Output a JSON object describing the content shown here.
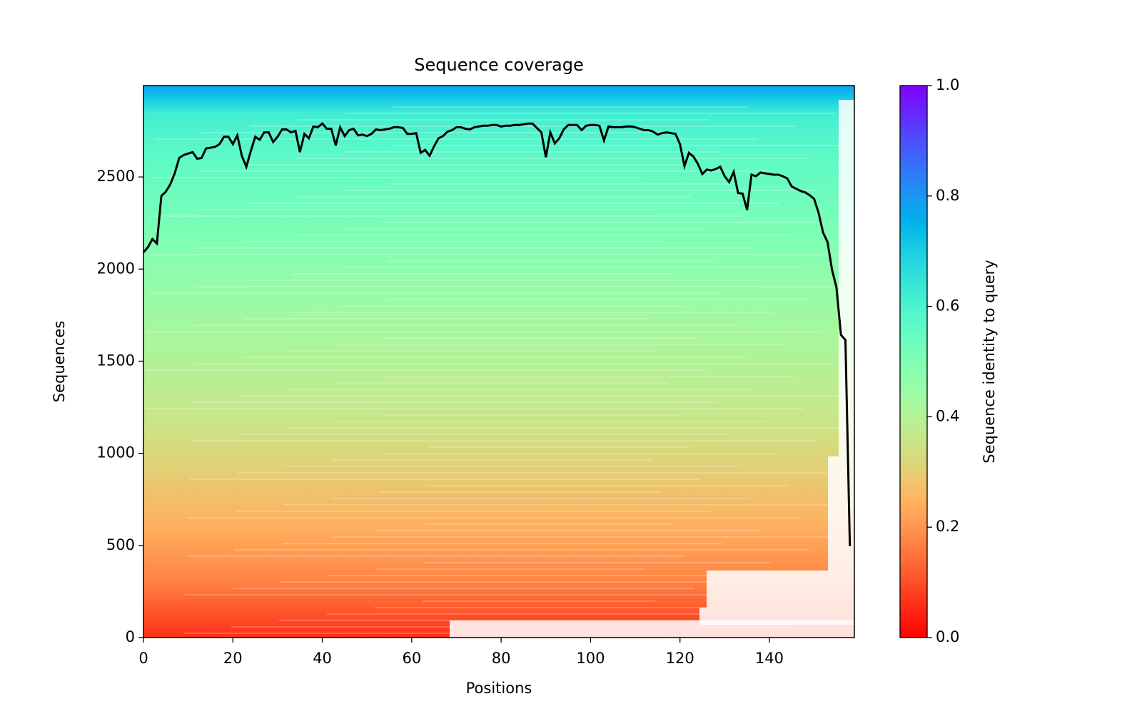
{
  "chart_data": {
    "type": "line",
    "title": "Sequence coverage",
    "xlabel": "Positions",
    "ylabel": "Sequences",
    "xlim": [
      0,
      159
    ],
    "ylim": [
      0,
      2996
    ],
    "xticks": [
      0,
      20,
      40,
      60,
      80,
      100,
      120,
      140
    ],
    "yticks": [
      0,
      500,
      1000,
      1500,
      2000,
      2500
    ],
    "color": "#000000",
    "x": [
      0,
      1,
      2,
      3,
      4,
      5,
      6,
      7,
      8,
      9,
      10,
      11,
      12,
      13,
      14,
      15,
      16,
      17,
      18,
      19,
      20,
      21,
      22,
      23,
      24,
      25,
      26,
      27,
      28,
      29,
      30,
      31,
      32,
      33,
      34,
      35,
      36,
      37,
      38,
      39,
      40,
      41,
      42,
      43,
      44,
      45,
      46,
      47,
      48,
      49,
      50,
      51,
      52,
      53,
      54,
      55,
      56,
      57,
      58,
      59,
      60,
      61,
      62,
      63,
      64,
      65,
      66,
      67,
      68,
      69,
      70,
      71,
      72,
      73,
      74,
      75,
      76,
      77,
      78,
      79,
      80,
      81,
      82,
      83,
      84,
      85,
      86,
      87,
      88,
      89,
      90,
      91,
      92,
      93,
      94,
      95,
      96,
      97,
      98,
      99,
      100,
      101,
      102,
      103,
      104,
      105,
      106,
      107,
      108,
      109,
      110,
      111,
      112,
      113,
      114,
      115,
      116,
      117,
      118,
      119,
      120,
      121,
      122,
      123,
      124,
      125,
      126,
      127,
      128,
      129,
      130,
      131,
      132,
      133,
      134,
      135,
      136,
      137,
      138,
      139,
      140,
      141,
      142,
      143,
      144,
      145,
      146,
      147,
      148,
      149,
      150,
      151,
      152,
      153,
      154,
      155,
      156,
      157,
      158
    ],
    "values": [
      2091,
      2119,
      2163,
      2139,
      2397,
      2420,
      2460,
      2520,
      2603,
      2619,
      2627,
      2635,
      2599,
      2603,
      2655,
      2659,
      2663,
      2678,
      2718,
      2718,
      2678,
      2726,
      2615,
      2555,
      2639,
      2718,
      2702,
      2742,
      2742,
      2690,
      2718,
      2758,
      2758,
      2742,
      2750,
      2635,
      2734,
      2710,
      2774,
      2770,
      2790,
      2762,
      2762,
      2671,
      2770,
      2722,
      2754,
      2762,
      2726,
      2730,
      2722,
      2734,
      2758,
      2754,
      2758,
      2762,
      2770,
      2770,
      2766,
      2734,
      2734,
      2738,
      2631,
      2647,
      2615,
      2667,
      2710,
      2722,
      2746,
      2754,
      2770,
      2770,
      2762,
      2758,
      2770,
      2774,
      2778,
      2778,
      2782,
      2782,
      2774,
      2778,
      2778,
      2782,
      2782,
      2786,
      2790,
      2790,
      2766,
      2742,
      2607,
      2742,
      2682,
      2710,
      2758,
      2782,
      2782,
      2782,
      2754,
      2778,
      2782,
      2782,
      2778,
      2698,
      2774,
      2770,
      2770,
      2770,
      2774,
      2774,
      2770,
      2762,
      2754,
      2754,
      2746,
      2730,
      2738,
      2742,
      2738,
      2734,
      2678,
      2559,
      2631,
      2611,
      2571,
      2516,
      2540,
      2535,
      2543,
      2555,
      2504,
      2472,
      2528,
      2413,
      2409,
      2321,
      2512,
      2504,
      2524,
      2520,
      2516,
      2512,
      2512,
      2504,
      2492,
      2448,
      2436,
      2424,
      2416,
      2401,
      2381,
      2305,
      2198,
      2147,
      1996,
      1901,
      1643,
      1615,
      496
    ],
    "colorbar": {
      "label": "Sequence identity to query",
      "lim": [
        0,
        1
      ],
      "ticks": [
        {
          "value": 0,
          "label": "0.0"
        },
        0.2,
        0.4,
        0.6,
        0.8,
        {
          "value": 1,
          "label": "1.0"
        }
      ]
    }
  }
}
